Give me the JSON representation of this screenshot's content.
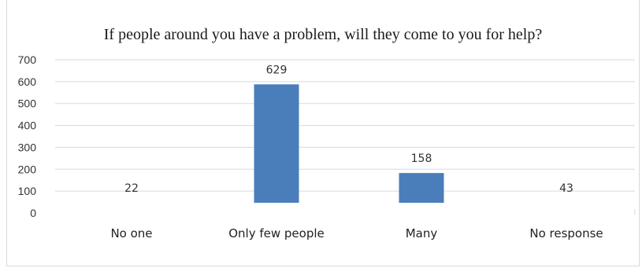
{
  "chart_data": {
    "type": "bar",
    "title": "If people around you have a problem, will they come to you for help?",
    "categories": [
      "No one",
      "Only few people",
      "Many",
      "No response"
    ],
    "values": [
      22,
      629,
      158,
      43
    ],
    "data_labels": [
      "22",
      "629",
      "158",
      "43"
    ],
    "y_ticks": [
      "0",
      "100",
      "200",
      "300",
      "400",
      "500",
      "600",
      "700"
    ],
    "ylim": [
      0,
      700
    ],
    "xlabel": "",
    "ylabel": "",
    "grid": true,
    "legend": "none",
    "bar_color": "#4a7ebb"
  }
}
